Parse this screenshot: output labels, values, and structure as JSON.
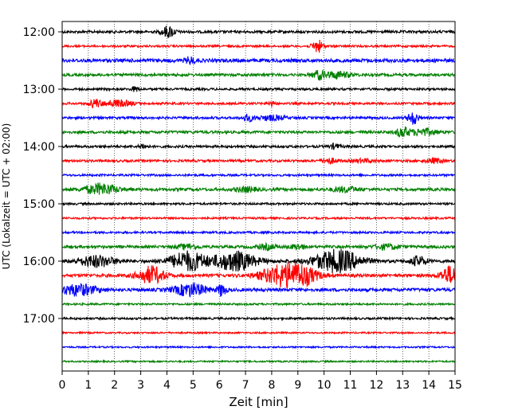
{
  "chart_data": {
    "type": "line",
    "title": "",
    "xlabel": "Zeit  [min]",
    "ylabel": "UTC (Lokalzeit = UTC + 02:00)",
    "xlim": [
      0,
      15
    ],
    "x_ticks": [
      0,
      1,
      2,
      3,
      4,
      5,
      6,
      7,
      8,
      9,
      10,
      11,
      12,
      13,
      14,
      15
    ],
    "y_tick_labels": [
      "12:00",
      "13:00",
      "14:00",
      "15:00",
      "16:00",
      "17:00"
    ],
    "grid": "vertical dotted",
    "legend": "none",
    "trace_interval_minutes": 15,
    "start_time": "12:00",
    "color_cycle": [
      "#000000",
      "#ff0000",
      "#0000ff",
      "#008000"
    ],
    "traces": [
      {
        "time": "12:00",
        "color": "#000000",
        "noise": 1.6,
        "events": [
          [
            4.05,
            7,
            0.25
          ]
        ]
      },
      {
        "time": "12:15",
        "color": "#ff0000",
        "noise": 1.3,
        "events": [
          [
            9.75,
            8,
            0.2
          ]
        ]
      },
      {
        "time": "12:30",
        "color": "#0000ff",
        "noise": 2.2,
        "events": [
          [
            4.9,
            4,
            0.2
          ]
        ]
      },
      {
        "time": "12:45",
        "color": "#008000",
        "noise": 1.7,
        "events": [
          [
            9.8,
            5,
            0.25
          ],
          [
            10.5,
            4,
            0.5
          ]
        ]
      },
      {
        "time": "13:00",
        "color": "#000000",
        "noise": 1.4,
        "events": [
          [
            2.8,
            3,
            0.15
          ]
        ]
      },
      {
        "time": "13:15",
        "color": "#ff0000",
        "noise": 1.4,
        "events": [
          [
            1.25,
            5,
            0.2
          ],
          [
            2.1,
            4,
            0.6
          ],
          [
            8.0,
            3,
            0.15
          ]
        ]
      },
      {
        "time": "13:30",
        "color": "#0000ff",
        "noise": 1.5,
        "events": [
          [
            7.1,
            4,
            0.2
          ],
          [
            8.0,
            3,
            0.5
          ],
          [
            13.4,
            8,
            0.2
          ]
        ]
      },
      {
        "time": "13:45",
        "color": "#008000",
        "noise": 1.7,
        "events": [
          [
            13.0,
            6,
            0.25
          ],
          [
            13.8,
            4,
            0.5
          ]
        ]
      },
      {
        "time": "14:00",
        "color": "#000000",
        "noise": 1.5,
        "events": [
          [
            3.1,
            3,
            0.15
          ],
          [
            10.4,
            3,
            0.2
          ]
        ]
      },
      {
        "time": "14:15",
        "color": "#ff0000",
        "noise": 1.5,
        "events": [
          [
            10.2,
            3,
            0.3
          ],
          [
            11.5,
            2,
            0.4
          ],
          [
            14.2,
            3,
            0.3
          ]
        ]
      },
      {
        "time": "14:30",
        "color": "#0000ff",
        "noise": 1.3,
        "events": []
      },
      {
        "time": "14:45",
        "color": "#008000",
        "noise": 1.8,
        "events": [
          [
            1.5,
            7,
            0.6
          ],
          [
            7.0,
            3,
            0.4
          ],
          [
            10.8,
            3,
            0.5
          ]
        ]
      },
      {
        "time": "15:00",
        "color": "#000000",
        "noise": 1.3,
        "events": []
      },
      {
        "time": "15:15",
        "color": "#ff0000",
        "noise": 1.2,
        "events": []
      },
      {
        "time": "15:30",
        "color": "#0000ff",
        "noise": 1.3,
        "events": []
      },
      {
        "time": "15:45",
        "color": "#008000",
        "noise": 1.7,
        "events": [
          [
            4.8,
            3,
            0.4
          ],
          [
            7.8,
            3,
            0.4
          ],
          [
            9.0,
            3,
            0.3
          ],
          [
            12.4,
            3,
            0.5
          ]
        ]
      },
      {
        "time": "16:00",
        "color": "#000000",
        "noise": 1.9,
        "events": [
          [
            1.3,
            7,
            0.7
          ],
          [
            4.8,
            12,
            0.7
          ],
          [
            6.6,
            12,
            0.8
          ],
          [
            10.5,
            14,
            0.9
          ],
          [
            13.6,
            6,
            0.3
          ]
        ]
      },
      {
        "time": "16:15",
        "color": "#ff0000",
        "noise": 1.9,
        "events": [
          [
            3.4,
            11,
            0.5
          ],
          [
            8.4,
            13,
            0.8
          ],
          [
            9.2,
            9,
            0.6
          ],
          [
            14.8,
            11,
            0.35
          ]
        ]
      },
      {
        "time": "16:30",
        "color": "#0000ff",
        "noise": 2.0,
        "events": [
          [
            0.6,
            7,
            0.7
          ],
          [
            4.9,
            8,
            0.6
          ],
          [
            6.1,
            8,
            0.15
          ]
        ]
      },
      {
        "time": "16:45",
        "color": "#008000",
        "noise": 1.2,
        "events": []
      },
      {
        "time": "17:00",
        "color": "#000000",
        "noise": 1.3,
        "events": []
      },
      {
        "time": "17:15",
        "color": "#ff0000",
        "noise": 1.0,
        "events": []
      },
      {
        "time": "17:30",
        "color": "#0000ff",
        "noise": 1.0,
        "events": []
      },
      {
        "time": "17:45",
        "color": "#008000",
        "noise": 1.0,
        "events": []
      }
    ]
  }
}
